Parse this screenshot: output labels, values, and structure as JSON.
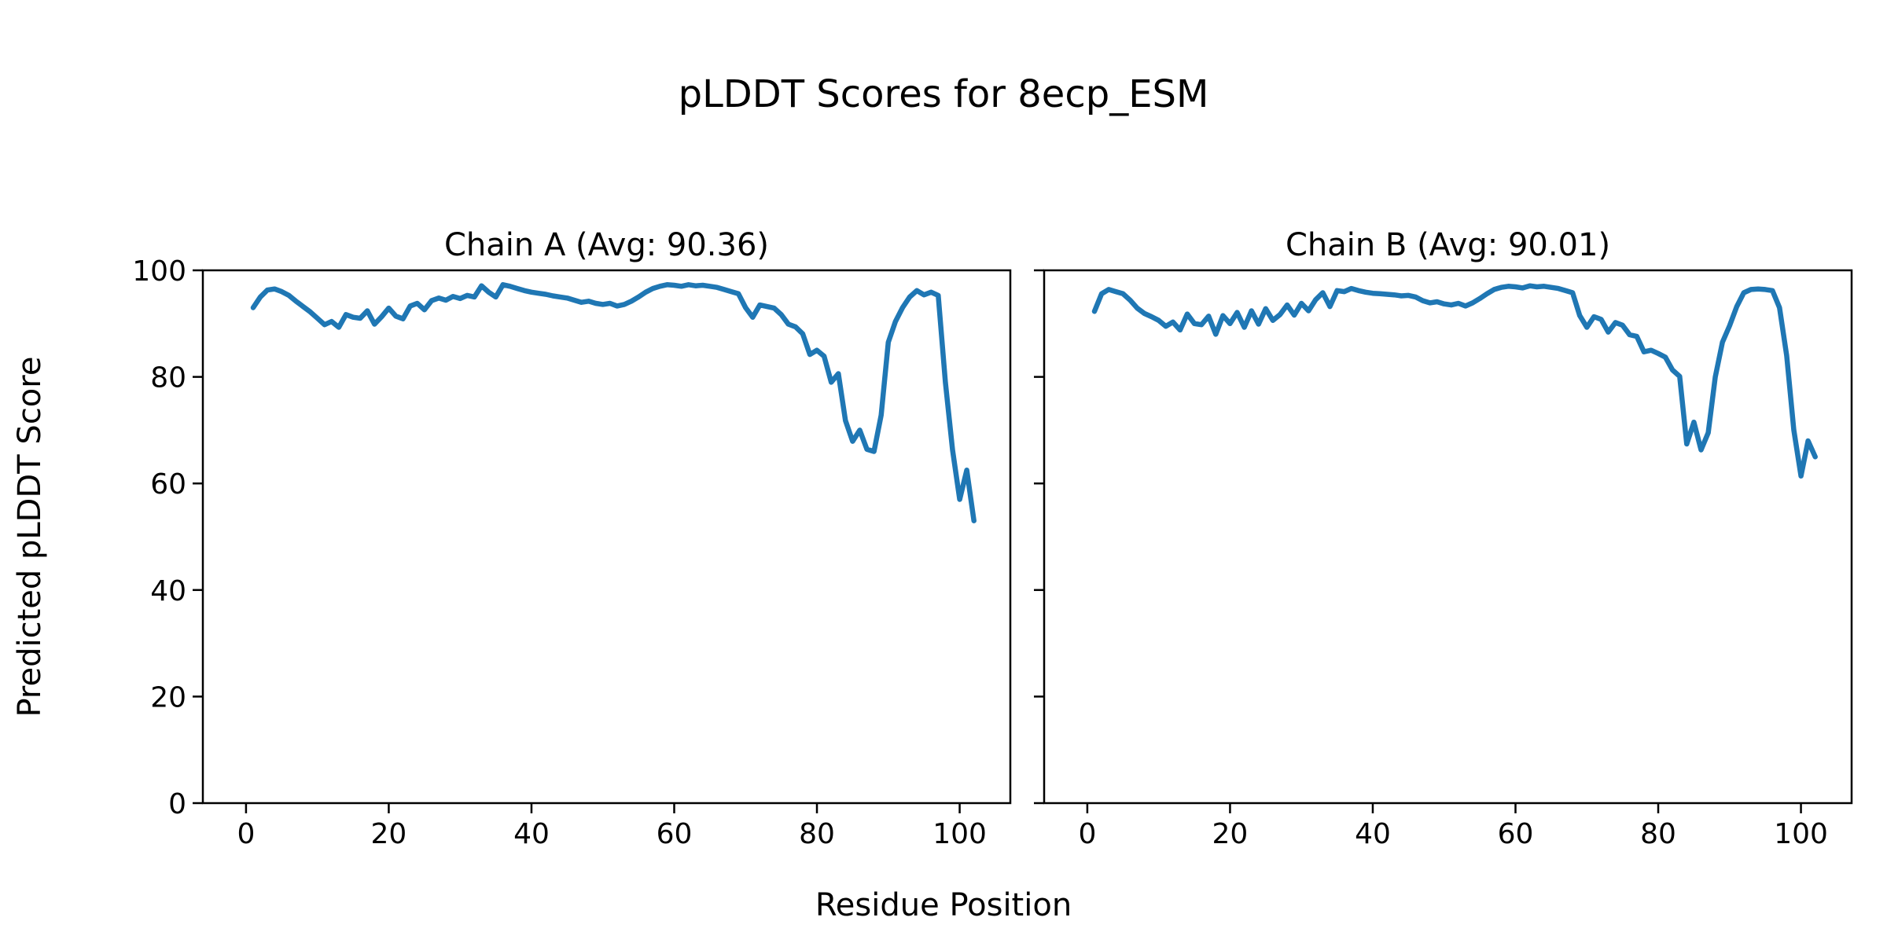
{
  "figure": {
    "suptitle": "pLDDT Scores for 8ecp_ESM",
    "xlabel": "Residue Position",
    "ylabel": "Predicted pLDDT Score",
    "background_color": "#ffffff",
    "text_color": "#000000",
    "spine_color": "#000000"
  },
  "chart_data": [
    {
      "type": "line",
      "title": "Chain A (Avg: 90.36)",
      "chain": "A",
      "avg_label": "90.36",
      "line_color": "#1f77b4",
      "xlabel": "Residue Position",
      "ylabel": "Predicted pLDDT Score",
      "xticks": [
        0,
        20,
        40,
        60,
        80,
        100
      ],
      "yticks": [
        0,
        20,
        40,
        60,
        80,
        100
      ],
      "xlim": [
        -6.05,
        107.1
      ],
      "ylim": [
        0,
        100
      ],
      "grid": false,
      "show_ytick_labels": true,
      "x_start": 1,
      "values": [
        93.0,
        95.0,
        96.3,
        96.5,
        96.0,
        95.3,
        94.2,
        93.2,
        92.2,
        91.0,
        89.8,
        90.4,
        89.3,
        91.7,
        91.2,
        91.0,
        92.4,
        89.9,
        91.3,
        92.9,
        91.4,
        90.9,
        93.3,
        93.8,
        92.6,
        94.3,
        94.8,
        94.4,
        95.1,
        94.7,
        95.3,
        95.0,
        97.1,
        95.9,
        95.0,
        97.3,
        97.0,
        96.6,
        96.2,
        95.9,
        95.7,
        95.5,
        95.2,
        95.0,
        94.8,
        94.4,
        94.0,
        94.2,
        93.8,
        93.6,
        93.8,
        93.3,
        93.6,
        94.2,
        95.0,
        95.9,
        96.6,
        97.0,
        97.3,
        97.2,
        97.0,
        97.3,
        97.1,
        97.2,
        97.0,
        96.8,
        96.4,
        96.0,
        95.6,
        93.0,
        91.2,
        93.5,
        93.2,
        92.9,
        91.7,
        89.9,
        89.4,
        88.1,
        84.2,
        85.0,
        83.9,
        79.0,
        80.6,
        71.8,
        67.9,
        70.0,
        66.4,
        66.0,
        72.8,
        86.5,
        90.4,
        93.0,
        95.0,
        96.2,
        95.4,
        95.9,
        95.3,
        79.0,
        66.3,
        57.0,
        62.5,
        53.0
      ]
    },
    {
      "type": "line",
      "title": "Chain B (Avg: 90.01)",
      "chain": "B",
      "avg_label": "90.01",
      "line_color": "#1f77b4",
      "xlabel": "Residue Position",
      "ylabel": "Predicted pLDDT Score",
      "xticks": [
        0,
        20,
        40,
        60,
        80,
        100
      ],
      "yticks": [
        0,
        20,
        40,
        60,
        80,
        100
      ],
      "xlim": [
        -6.05,
        107.1
      ],
      "ylim": [
        0,
        100
      ],
      "grid": false,
      "show_ytick_labels": false,
      "x_start": 1,
      "values": [
        92.3,
        95.6,
        96.4,
        96.0,
        95.6,
        94.4,
        92.9,
        91.9,
        91.3,
        90.6,
        89.5,
        90.3,
        88.8,
        91.8,
        90.0,
        89.8,
        91.4,
        88.0,
        91.5,
        90.0,
        92.1,
        89.3,
        92.4,
        89.9,
        92.8,
        90.6,
        91.7,
        93.5,
        91.6,
        93.8,
        92.4,
        94.5,
        95.8,
        93.2,
        96.2,
        96.0,
        96.6,
        96.2,
        95.9,
        95.7,
        95.6,
        95.5,
        95.4,
        95.2,
        95.3,
        95.0,
        94.3,
        93.9,
        94.1,
        93.7,
        93.5,
        93.8,
        93.3,
        93.9,
        94.7,
        95.6,
        96.4,
        96.8,
        97.0,
        96.9,
        96.7,
        97.1,
        96.9,
        97.0,
        96.8,
        96.6,
        96.2,
        95.8,
        91.5,
        89.3,
        91.3,
        90.8,
        88.4,
        90.2,
        89.7,
        87.9,
        87.6,
        84.7,
        85.0,
        84.4,
        83.7,
        81.3,
        80.1,
        67.4,
        71.5,
        66.3,
        69.5,
        80.0,
        86.5,
        89.6,
        93.2,
        95.8,
        96.4,
        96.5,
        96.4,
        96.2,
        93.0,
        84.0,
        70.0,
        61.4,
        68.0,
        65.0
      ]
    }
  ]
}
